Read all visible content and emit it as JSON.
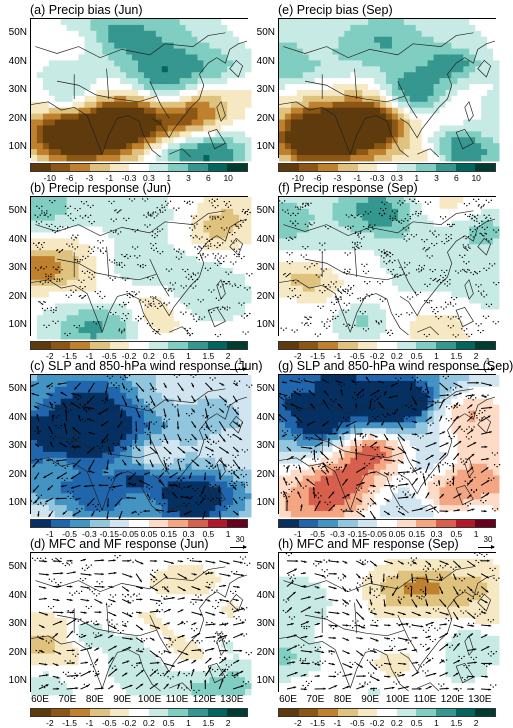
{
  "panels": [
    {
      "id": "a",
      "title": "(a) Precip bias (Jun)",
      "scheme": "brbg",
      "overlay": "none",
      "cbar": "bias"
    },
    {
      "id": "e",
      "title": "(e) Precip bias (Sep)",
      "scheme": "brbg",
      "overlay": "none",
      "cbar": "bias"
    },
    {
      "id": "b",
      "title": "(b) Precip response (Jun)",
      "scheme": "brbg",
      "overlay": "stipple",
      "cbar": "response"
    },
    {
      "id": "f",
      "title": "(f) Precip response (Sep)",
      "scheme": "brbg",
      "overlay": "stipple",
      "cbar": "response"
    },
    {
      "id": "c",
      "title": "(c) SLP and 850-hPa wind response (Jun)",
      "scheme": "rdbu_blue",
      "overlay": "wind",
      "cbar": "slp",
      "ref_label": "1"
    },
    {
      "id": "g",
      "title": "(g) SLP and 850-hPa wind response (Sep)",
      "scheme": "rdbu_mixed",
      "overlay": "wind",
      "cbar": "slp",
      "ref_label": "1"
    },
    {
      "id": "d",
      "title": "(d) MFC and MF response (Jun)",
      "scheme": "brbg",
      "overlay": "wind",
      "cbar": "mfc",
      "ref_label": "30"
    },
    {
      "id": "h",
      "title": "(h) MFC and MF response (Sep)",
      "scheme": "brbg",
      "overlay": "wind",
      "cbar": "mfc",
      "ref_label": "30"
    }
  ],
  "lat_labels": [
    "50N",
    "40N",
    "30N",
    "20N",
    "10N"
  ],
  "lon_labels": [
    "60E",
    "70E",
    "80E",
    "90E",
    "100E",
    "110E",
    "120E",
    "130E"
  ],
  "colorbars": {
    "bias": {
      "ticks": [
        "-10",
        "-6",
        "-3",
        "-1",
        "-0.3",
        "0.3",
        "1",
        "3",
        "6",
        "10"
      ],
      "colors": [
        "#5e3a0c",
        "#8c5614",
        "#bf812d",
        "#dfc27d",
        "#f6e8c3",
        "#ffffff",
        "#c7eae5",
        "#80cdc1",
        "#35978f",
        "#01665e",
        "#003c30"
      ]
    },
    "response": {
      "ticks": [
        "-2",
        "-1.5",
        "-1",
        "-0.5",
        "-0.2",
        "0.2",
        "0.5",
        "1",
        "1.5",
        "2"
      ],
      "colors": [
        "#5e3a0c",
        "#8c5614",
        "#bf812d",
        "#dfc27d",
        "#f6e8c3",
        "#ffffff",
        "#c7eae5",
        "#80cdc1",
        "#35978f",
        "#01665e",
        "#003c30"
      ]
    },
    "slp": {
      "ticks": [
        "-1",
        "-0.5",
        "-0.3",
        "-0.15",
        "-0.05",
        "0.05",
        "0.15",
        "0.3",
        "0.5",
        "1"
      ],
      "colors": [
        "#053061",
        "#2166ac",
        "#4393c3",
        "#92c5de",
        "#d1e5f0",
        "#ffffff",
        "#fddbc7",
        "#f4a582",
        "#d6604d",
        "#b2182b",
        "#67001f"
      ]
    },
    "mfc": {
      "ticks": [
        "-2",
        "-1.5",
        "-1",
        "-0.5",
        "-0.2",
        "0.2",
        "0.5",
        "1",
        "1.5",
        "2"
      ],
      "colors": [
        "#5e3a0c",
        "#8c5614",
        "#bf812d",
        "#dfc27d",
        "#f6e8c3",
        "#ffffff",
        "#c7eae5",
        "#80cdc1",
        "#35978f",
        "#01665e",
        "#003c30"
      ]
    }
  }
}
